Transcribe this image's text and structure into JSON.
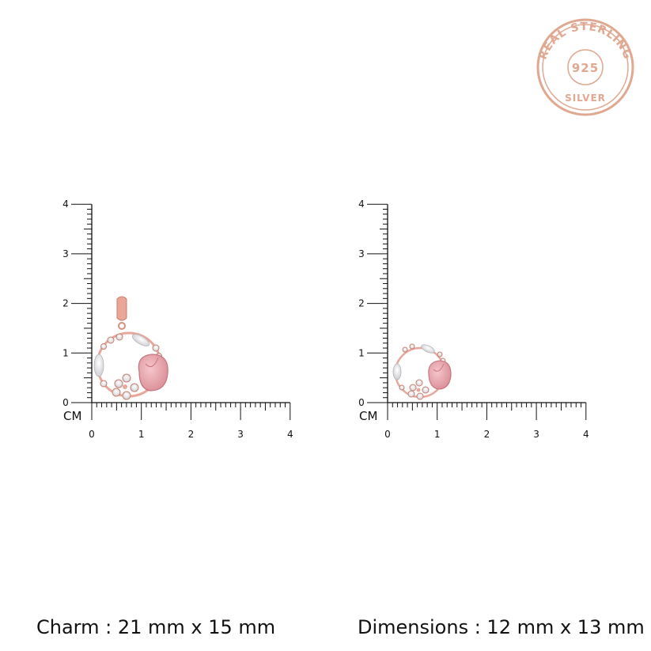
{
  "seal": {
    "top_text": "REAL STERLING",
    "center_text": "925",
    "bottom_text": "SILVER",
    "color": "#e0a890"
  },
  "panels": [
    {
      "unit": "CM",
      "ticks": [
        "0",
        "1",
        "2",
        "3",
        "4"
      ],
      "caption": "Charm : 21 mm x 15 mm",
      "item": "pendant"
    },
    {
      "unit": "CM",
      "ticks": [
        "0",
        "1",
        "2",
        "3",
        "4"
      ],
      "caption": "Dimensions : 12 mm x 13 mm",
      "item": "charm"
    }
  ],
  "colors": {
    "rose_gold": "#e8a79a",
    "pink_stone": "#e6a0a8",
    "crystal": "#f4f4f4"
  }
}
